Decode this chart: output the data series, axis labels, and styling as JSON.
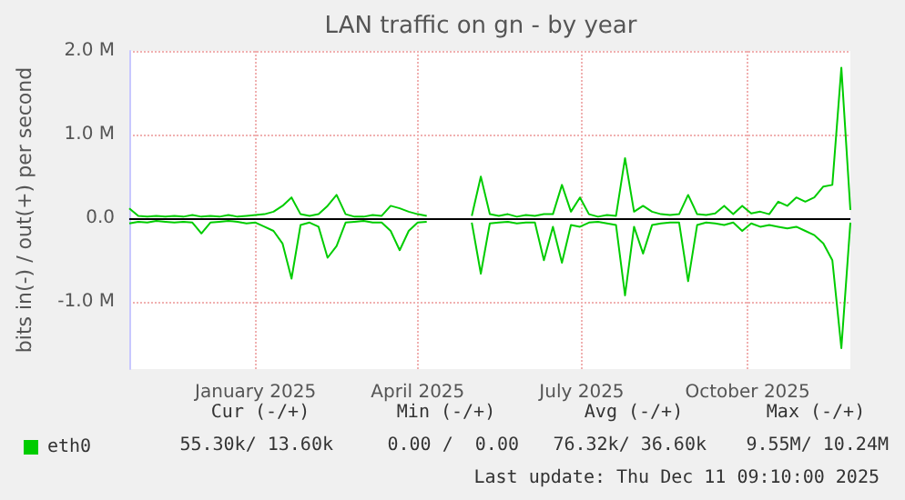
{
  "chart_data": {
    "type": "line",
    "title": "LAN traffic on gn - by year",
    "ylabel": "bits in(-) / out(+) per second",
    "x": [
      "2024-11-06",
      "2024-11-11",
      "2024-11-16",
      "2024-11-21",
      "2024-11-26",
      "2024-12-01",
      "2024-12-06",
      "2024-12-11",
      "2024-12-16",
      "2024-12-21",
      "2024-12-26",
      "2024-12-31",
      "2025-01-05",
      "2025-01-10",
      "2025-01-15",
      "2025-01-20",
      "2025-01-25",
      "2025-01-30",
      "2025-02-04",
      "2025-02-09",
      "2025-02-14",
      "2025-02-19",
      "2025-02-24",
      "2025-03-01",
      "2025-03-06",
      "2025-03-11",
      "2025-03-16",
      "2025-03-21",
      "2025-03-26",
      "2025-03-31",
      "2025-04-05",
      "2025-04-10",
      "2025-04-15",
      "2025-04-20",
      "2025-04-25",
      "2025-04-30",
      "2025-05-05",
      "2025-05-10",
      "2025-05-15",
      "2025-05-20",
      "2025-05-25",
      "2025-05-30",
      "2025-06-04",
      "2025-06-09",
      "2025-06-14",
      "2025-06-19",
      "2025-06-24",
      "2025-06-29",
      "2025-07-04",
      "2025-07-09",
      "2025-07-14",
      "2025-07-19",
      "2025-07-24",
      "2025-07-29",
      "2025-08-03",
      "2025-08-08",
      "2025-08-13",
      "2025-08-18",
      "2025-08-23",
      "2025-08-28",
      "2025-09-02",
      "2025-09-07",
      "2025-09-12",
      "2025-09-17",
      "2025-09-22",
      "2025-09-27",
      "2025-10-02",
      "2025-10-07",
      "2025-10-12",
      "2025-10-17",
      "2025-10-22",
      "2025-10-27",
      "2025-11-01",
      "2025-11-06",
      "2025-11-11",
      "2025-11-16",
      "2025-11-21",
      "2025-11-26",
      "2025-12-01",
      "2025-12-06",
      "2025-12-11"
    ],
    "series": [
      {
        "name": "eth0",
        "color": "#00cc00",
        "values": [
          0.12,
          0.03,
          0.02,
          0.03,
          0.02,
          0.03,
          0.02,
          0.04,
          0.02,
          0.03,
          0.02,
          0.04,
          0.02,
          0.03,
          0.04,
          0.05,
          0.08,
          0.15,
          0.25,
          0.05,
          0.03,
          0.05,
          0.15,
          0.28,
          0.05,
          0.02,
          0.02,
          0.04,
          0.03,
          0.15,
          0.12,
          0.08,
          0.05,
          0.03,
          null,
          null,
          null,
          null,
          0.03,
          0.5,
          0.05,
          0.03,
          0.05,
          0.02,
          0.04,
          0.03,
          0.05,
          0.05,
          0.4,
          0.08,
          0.25,
          0.05,
          0.02,
          0.04,
          0.03,
          0.72,
          0.08,
          0.15,
          0.08,
          0.05,
          0.04,
          0.05,
          0.28,
          0.05,
          0.04,
          0.06,
          0.15,
          0.05,
          0.15,
          0.06,
          0.08,
          0.05,
          0.2,
          0.15,
          0.25,
          0.2,
          0.25,
          0.38,
          0.4,
          1.8,
          0.1
        ]
      },
      {
        "color": "#00cc00",
        "values": [
          -0.06,
          -0.04,
          -0.05,
          -0.03,
          -0.04,
          -0.05,
          -0.04,
          -0.05,
          -0.18,
          -0.05,
          -0.04,
          -0.03,
          -0.04,
          -0.06,
          -0.05,
          -0.1,
          -0.15,
          -0.3,
          -0.72,
          -0.08,
          -0.05,
          -0.1,
          -0.47,
          -0.33,
          -0.05,
          -0.04,
          -0.03,
          -0.05,
          -0.05,
          -0.15,
          -0.38,
          -0.15,
          -0.05,
          -0.04,
          null,
          null,
          null,
          null,
          -0.05,
          -0.66,
          -0.06,
          -0.05,
          -0.04,
          -0.06,
          -0.05,
          -0.05,
          -0.5,
          -0.1,
          -0.53,
          -0.08,
          -0.1,
          -0.05,
          -0.04,
          -0.06,
          -0.08,
          -0.92,
          -0.1,
          -0.42,
          -0.08,
          -0.06,
          -0.05,
          -0.05,
          -0.75,
          -0.08,
          -0.05,
          -0.06,
          -0.08,
          -0.05,
          -0.15,
          -0.06,
          -0.1,
          -0.08,
          -0.1,
          -0.12,
          -0.1,
          -0.15,
          -0.2,
          -0.3,
          -0.5,
          -1.55,
          -0.05
        ]
      }
    ],
    "xlim": [
      "2024-11-06",
      "2025-12-11"
    ],
    "xticks": [
      {
        "value": "2025-01-15",
        "label": "January 2025"
      },
      {
        "value": "2025-04-15",
        "label": "April 2025"
      },
      {
        "value": "2025-07-15",
        "label": "July 2025"
      },
      {
        "value": "2025-10-15",
        "label": "October 2025"
      }
    ],
    "ylim": [
      -1.8,
      2.0
    ],
    "yticks": [
      {
        "value": -1,
        "label": "-1.0 M"
      },
      {
        "value": 0,
        "label": "0.0"
      },
      {
        "value": 1,
        "label": "1.0 M"
      },
      {
        "value": 2,
        "label": "2.0 M"
      }
    ],
    "ref_lines": [
      {
        "axis": "y",
        "value": 0,
        "color": "#000000"
      }
    ],
    "grid": true,
    "legend": "bottom left",
    "marker": "none",
    "line_style": "solid",
    "annotations": [
      "Cur (-/+)",
      "Min (-/+)",
      "Avg (-/+)",
      "Max (-/+)",
      "55.30k/ 13.60k",
      "0.00 /  0.00",
      "76.32k/ 36.60k",
      "9.55M/ 10.24M",
      "Last update: Thu Dec 11 09:10:00 2025"
    ]
  }
}
